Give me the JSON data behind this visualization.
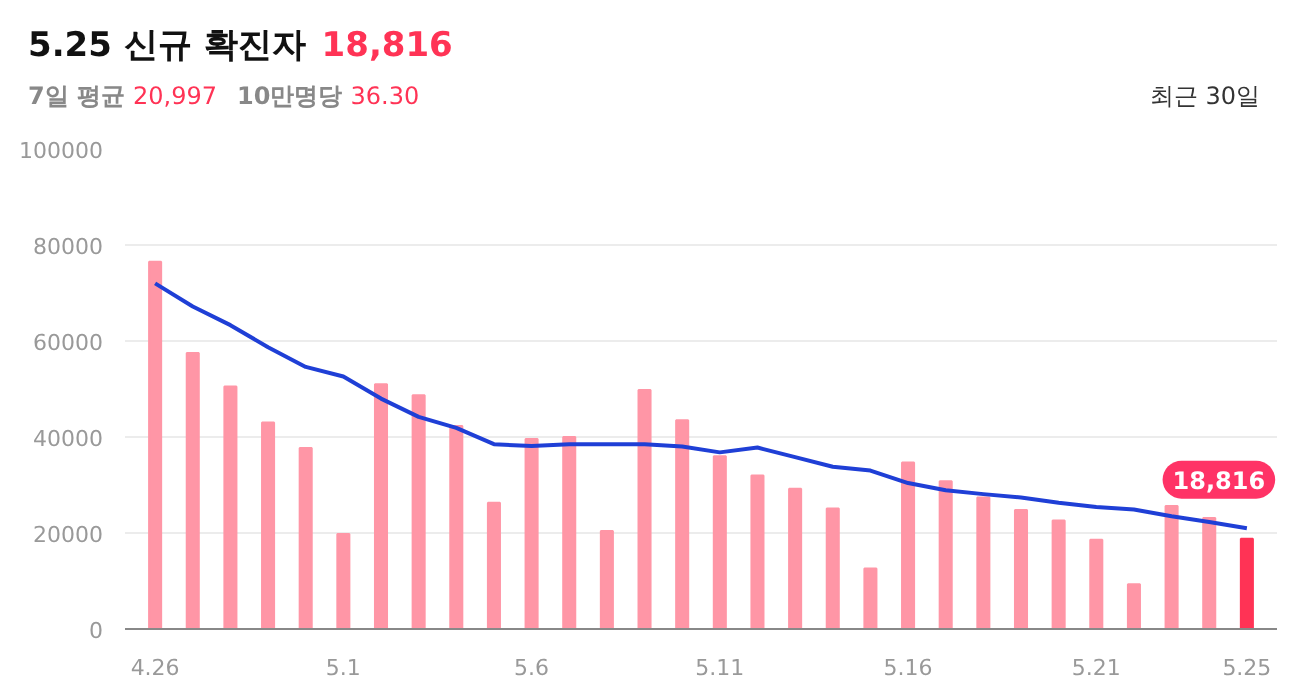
{
  "chart_data": {
    "type": "bar",
    "title": "5.25 신규 확진자",
    "categories": [
      "4.26",
      null,
      null,
      null,
      null,
      "5.1",
      null,
      null,
      null,
      null,
      "5.6",
      null,
      null,
      null,
      null,
      "5.11",
      null,
      null,
      null,
      null,
      "5.16",
      null,
      null,
      null,
      null,
      "5.21",
      null,
      null,
      null,
      "5.25"
    ],
    "series": [
      {
        "colors": [
          "#ff96a6",
          "#ff96a6",
          "#ff96a6",
          "#ff96a6",
          "#ff96a6",
          "#ff96a6",
          "#ff96a6",
          "#ff96a6",
          "#ff96a6",
          "#ff96a6",
          "#ff96a6",
          "#ff96a6",
          "#ff96a6",
          "#ff96a6",
          "#ff96a6",
          "#ff96a6",
          "#ff96a6",
          "#ff96a6",
          "#ff96a6",
          "#ff96a6",
          "#ff96a6",
          "#ff96a6",
          "#ff96a6",
          "#ff96a6",
          "#ff96a6",
          "#ff96a6",
          "#ff96a6",
          "#ff96a6",
          "#ff96a6",
          "#ff3355"
        ],
        "values": [
          76500,
          57500,
          50500,
          43000,
          37700,
          19800,
          51000,
          48700,
          42300,
          26300,
          39600,
          40000,
          20400,
          49800,
          43500,
          36000,
          32000,
          29200,
          25100,
          12600,
          34700,
          30800,
          27400,
          24800,
          22600,
          18600,
          9300,
          25600,
          23100,
          18816
        ]
      },
      {
        "type": "line",
        "color": "#1f3fd6",
        "values": [
          72000,
          67200,
          63300,
          58700,
          54600,
          52600,
          48000,
          44200,
          41900,
          38500,
          38100,
          38500,
          38500,
          38500,
          38000,
          36800,
          37800,
          35800,
          33800,
          33000,
          30400,
          28900,
          28100,
          27400,
          26300,
          25400,
          24900,
          23500,
          22300,
          20997
        ]
      }
    ],
    "ylim": [
      0,
      100000
    ],
    "yticks": [
      0,
      20000,
      40000,
      60000,
      80000,
      100000
    ],
    "grid": "y",
    "annotations": [
      "18,816",
      "7일 평균",
      "20,997",
      "10만명당",
      "36.30",
      "최근 30일",
      {
        "text": "18,816",
        "x": "5.25",
        "y": 18816
      }
    ]
  }
}
